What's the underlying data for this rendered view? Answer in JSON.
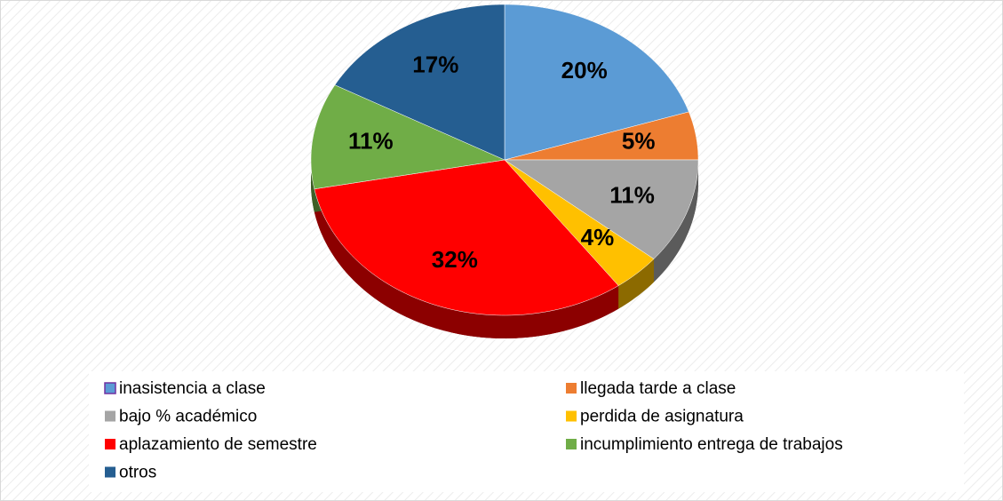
{
  "chart_data": {
    "type": "pie",
    "categories": [
      "inasistencia a clase",
      "llegada tarde a clase",
      "bajo % académico",
      "perdida de asignatura",
      "aplazamiento de semestre",
      "incumplimiento entrega de trabajos",
      "otros"
    ],
    "values": [
      20,
      5,
      11,
      4,
      32,
      11,
      17
    ],
    "value_labels": [
      "20%",
      "5%",
      "11%",
      "4%",
      "32%",
      "11%",
      "17%"
    ],
    "colors": [
      "#5b9bd5",
      "#ed7d31",
      "#a5a5a5",
      "#ffc000",
      "#ff0000",
      "#70ad47",
      "#255e91"
    ],
    "legend": "bottom"
  }
}
